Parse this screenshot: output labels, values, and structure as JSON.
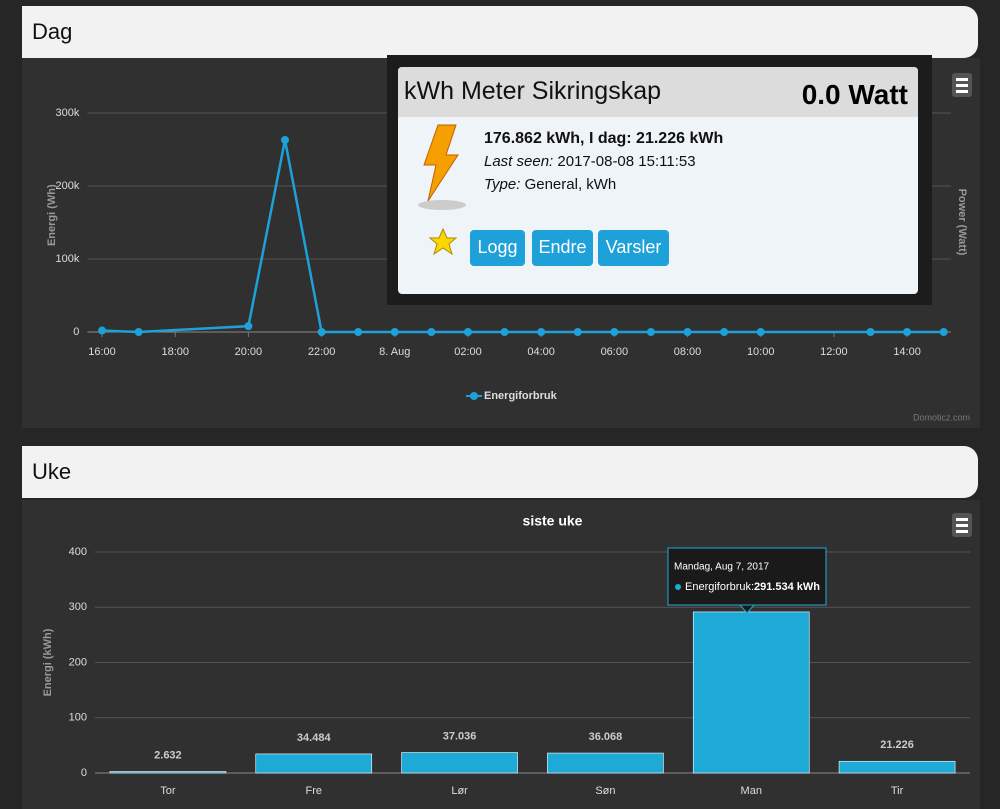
{
  "sections": {
    "day": "Dag",
    "week": "Uke"
  },
  "device_popup": {
    "name": "kWh Meter Sikringskap",
    "power": "0.0 Watt",
    "summary": "176.862 kWh, I dag: 21.226 kWh",
    "last_seen_label": "Last seen:",
    "last_seen": "2017-08-08 15:11:53",
    "type_label": "Type:",
    "type": "General, kWh",
    "buttons": [
      "Logg",
      "Endre",
      "Varsler"
    ]
  },
  "tooltip": {
    "date": "Mandag, Aug 7, 2017",
    "series": "Energiforbruk:",
    "value": "291.534 kWh"
  },
  "credit": "Domoticz.com",
  "chart_data": [
    {
      "type": "line",
      "y_label": "Energi (Wh)",
      "y2_label": "Power (Watt)",
      "x": [
        0,
        1,
        4,
        5,
        6,
        7,
        8,
        9,
        10,
        11,
        12,
        13,
        14,
        15,
        16,
        17,
        18,
        21,
        22,
        23
      ],
      "series": [
        {
          "name": "Energiforbruk",
          "color": "#1ea0d8",
          "values": [
            2000,
            0,
            8000,
            263000,
            0,
            0,
            0,
            0,
            0,
            0,
            0,
            0,
            0,
            0,
            0,
            0,
            0,
            0,
            0,
            0
          ]
        }
      ],
      "xlim": [
        -0.4,
        23.2
      ],
      "xticks": [
        {
          "value": 0,
          "label": "16:00"
        },
        {
          "value": 2,
          "label": "18:00"
        },
        {
          "value": 4,
          "label": "20:00"
        },
        {
          "value": 6,
          "label": "22:00"
        },
        {
          "value": 8,
          "label": "8. Aug"
        },
        {
          "value": 10,
          "label": "02:00"
        },
        {
          "value": 12,
          "label": "04:00"
        },
        {
          "value": 14,
          "label": "06:00"
        },
        {
          "value": 16,
          "label": "08:00"
        },
        {
          "value": 18,
          "label": "10:00"
        },
        {
          "value": 20,
          "label": "12:00"
        },
        {
          "value": 22,
          "label": "14:00"
        }
      ],
      "ylim": [
        0,
        320000
      ],
      "yticks": [
        0,
        {
          "value": 100000,
          "label": "100k"
        },
        {
          "value": 200000,
          "label": "200k"
        },
        {
          "value": 300000,
          "label": "300k"
        }
      ],
      "grid": true
    },
    {
      "type": "bar",
      "title": "siste uke",
      "y_label": "Energi (kWh)",
      "categories": [
        "Tor",
        "Fre",
        "Lør",
        "Søn",
        "Man",
        "Tir"
      ],
      "values": [
        2.632,
        34.484,
        37.036,
        36.068,
        291.534,
        21.226
      ],
      "color": "#1eaad6",
      "ylim": [
        0,
        400
      ],
      "yticks": [
        0,
        100,
        200,
        300,
        400
      ],
      "grid": true
    }
  ]
}
